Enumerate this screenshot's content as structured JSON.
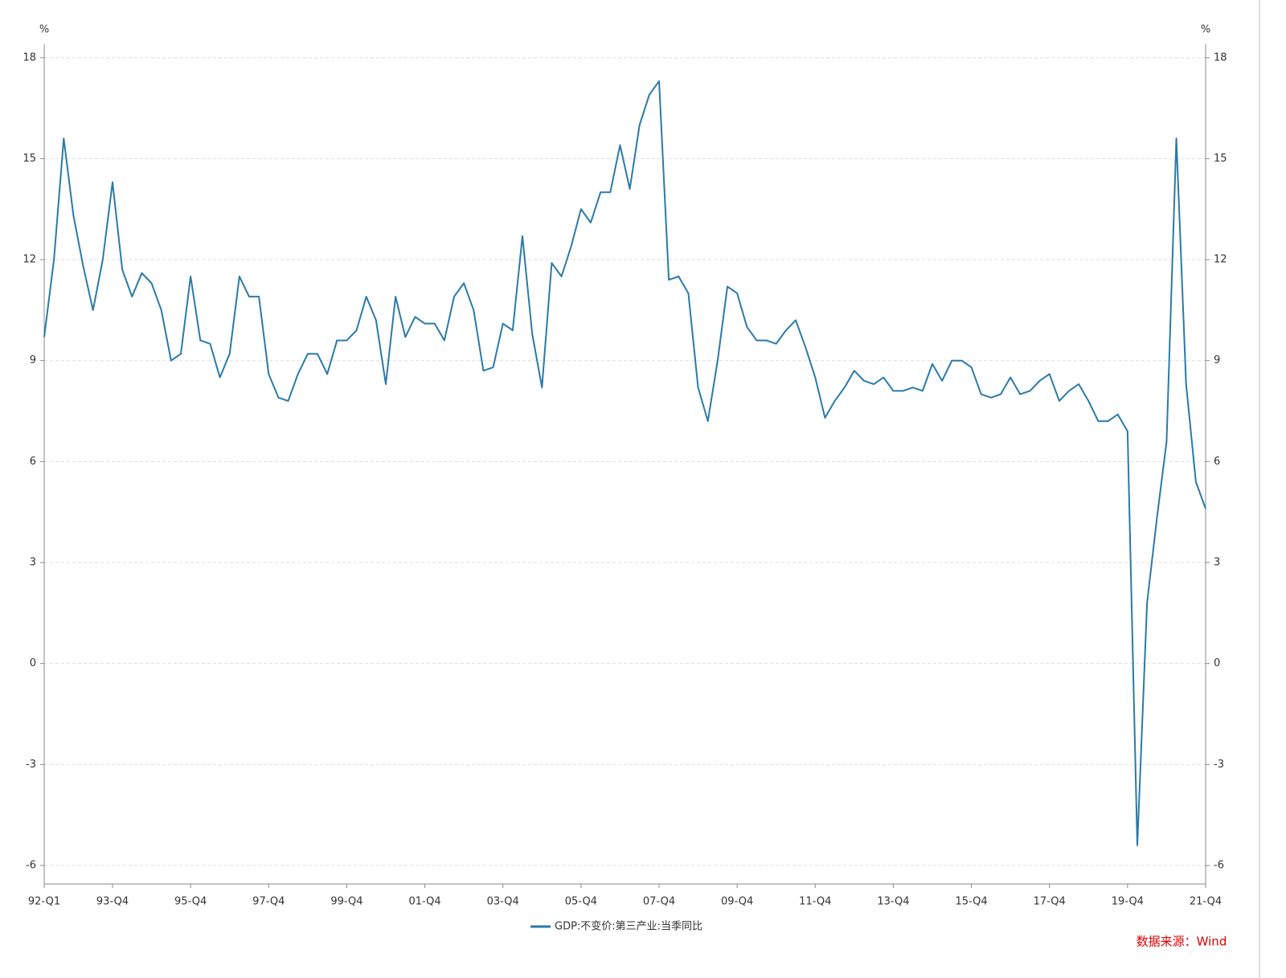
{
  "chart_data": {
    "type": "line",
    "ylabel": "%",
    "y2label": "%",
    "categories": [
      "92-Q1",
      null,
      null,
      null,
      null,
      null,
      null,
      "93-Q4",
      null,
      null,
      null,
      null,
      null,
      null,
      null,
      "95-Q4",
      null,
      null,
      null,
      null,
      null,
      null,
      null,
      "97-Q4",
      null,
      null,
      null,
      null,
      null,
      null,
      null,
      "99-Q4",
      null,
      null,
      null,
      null,
      null,
      null,
      null,
      "01-Q4",
      null,
      null,
      null,
      null,
      null,
      null,
      null,
      "03-Q4",
      null,
      null,
      null,
      null,
      null,
      null,
      null,
      "05-Q4",
      null,
      null,
      null,
      null,
      null,
      null,
      null,
      "07-Q4",
      null,
      null,
      null,
      null,
      null,
      null,
      null,
      "09-Q4",
      null,
      null,
      null,
      null,
      null,
      null,
      null,
      "11-Q4",
      null,
      null,
      null,
      null,
      null,
      null,
      null,
      "13-Q4",
      null,
      null,
      null,
      null,
      null,
      null,
      null,
      "15-Q4",
      null,
      null,
      null,
      null,
      null,
      null,
      null,
      "17-Q4",
      null,
      null,
      null,
      null,
      null,
      null,
      null,
      "19-Q4",
      null,
      null,
      null,
      null,
      null,
      null,
      null,
      "21-Q4"
    ],
    "series": [
      {
        "name": "GDP:不变价:第三产业:当季同比",
        "color": "#2a7aa8",
        "values": [
          9.7,
          12.0,
          15.6,
          13.3,
          11.8,
          10.5,
          12.0,
          14.3,
          11.7,
          10.9,
          11.6,
          11.3,
          10.5,
          9.0,
          9.2,
          11.5,
          9.6,
          9.5,
          8.5,
          9.2,
          11.5,
          10.9,
          10.9,
          8.6,
          7.9,
          7.8,
          8.6,
          9.2,
          9.2,
          8.6,
          9.6,
          9.6,
          9.9,
          10.9,
          10.2,
          8.3,
          10.9,
          9.7,
          10.3,
          10.1,
          10.1,
          9.6,
          10.9,
          11.3,
          10.5,
          8.7,
          8.8,
          10.1,
          9.9,
          12.7,
          9.8,
          8.2,
          11.9,
          11.5,
          12.4,
          13.5,
          13.1,
          14.0,
          14.0,
          15.4,
          14.1,
          16.0,
          16.9,
          17.3,
          11.4,
          11.5,
          11.0,
          8.2,
          7.2,
          9.0,
          11.2,
          11.0,
          10.0,
          9.6,
          9.6,
          9.5,
          9.9,
          10.2,
          9.4,
          8.5,
          7.3,
          7.8,
          8.2,
          8.7,
          8.4,
          8.3,
          8.5,
          8.1,
          8.1,
          8.2,
          8.1,
          8.9,
          8.4,
          9.0,
          9.0,
          8.8,
          8.0,
          7.9,
          8.0,
          8.5,
          8.0,
          8.1,
          8.4,
          8.6,
          7.8,
          8.1,
          8.3,
          7.8,
          7.2,
          7.2,
          7.4,
          6.9,
          -5.4,
          1.8,
          4.3,
          6.6,
          15.6,
          8.3,
          5.4,
          4.6
        ]
      }
    ],
    "ylim": [
      -6.55,
      18.4
    ],
    "yticks": [
      -6,
      -3,
      0,
      3,
      6,
      9,
      12,
      15,
      18
    ],
    "y2lim": [
      -6.55,
      18.4
    ],
    "y2ticks": [
      -6,
      -3,
      0,
      3,
      6,
      9,
      12,
      15,
      18
    ],
    "grid": true,
    "source": "数据来源：Wind"
  }
}
